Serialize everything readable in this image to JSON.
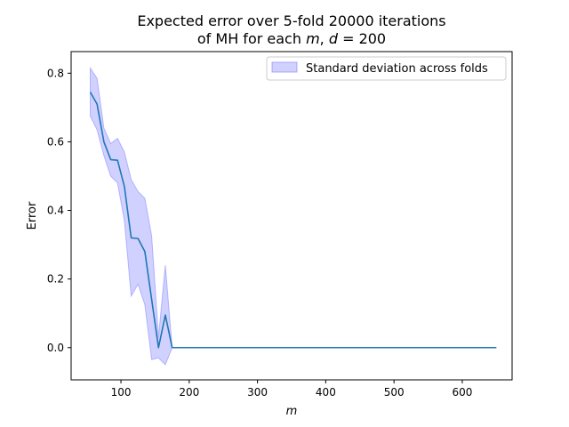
{
  "chart_data": {
    "type": "line",
    "title_line1": "Expected error over 5-fold 20000 iterations",
    "title_line2_prefix": "of MH for each ",
    "title_var_m": "m",
    "title_sep": ", ",
    "title_var_d": "d",
    "title_value": " = 200",
    "xlabel": "m",
    "ylabel": "Error",
    "xlim": [
      27,
      673
    ],
    "ylim": [
      -0.094,
      0.863
    ],
    "xticks": [
      100,
      200,
      300,
      400,
      500,
      600
    ],
    "yticks": [
      0.0,
      0.2,
      0.4,
      0.6,
      0.8
    ],
    "xtick_labels": [
      "100",
      "200",
      "300",
      "400",
      "500",
      "600"
    ],
    "ytick_labels": [
      "0.0",
      "0.2",
      "0.4",
      "0.6",
      "0.8"
    ],
    "grid": false,
    "legend_position": "top-right",
    "series": [
      {
        "values_x": [
          55,
          65,
          75,
          85,
          95,
          105,
          115,
          125,
          135,
          145,
          155,
          165,
          175,
          200,
          650
        ],
        "values_y": [
          0.745,
          0.71,
          0.6,
          0.548,
          0.546,
          0.47,
          0.32,
          0.318,
          0.28,
          0.14,
          0.0,
          0.095,
          0.0,
          0.0,
          0.0
        ],
        "color": "#1f77b4"
      }
    ],
    "bands": [
      {
        "name": "Standard deviation across folds",
        "x": [
          55,
          65,
          75,
          85,
          95,
          105,
          115,
          125,
          135,
          145,
          155,
          165,
          175,
          200,
          650
        ],
        "upper": [
          0.815,
          0.785,
          0.64,
          0.595,
          0.61,
          0.57,
          0.49,
          0.455,
          0.435,
          0.325,
          0.03,
          0.24,
          0.0,
          0.0,
          0.0
        ],
        "lower": [
          0.675,
          0.635,
          0.56,
          0.5,
          0.48,
          0.37,
          0.15,
          0.185,
          0.125,
          -0.035,
          -0.03,
          -0.05,
          0.0,
          0.0,
          0.0
        ],
        "color": "#7b7bff"
      }
    ]
  }
}
